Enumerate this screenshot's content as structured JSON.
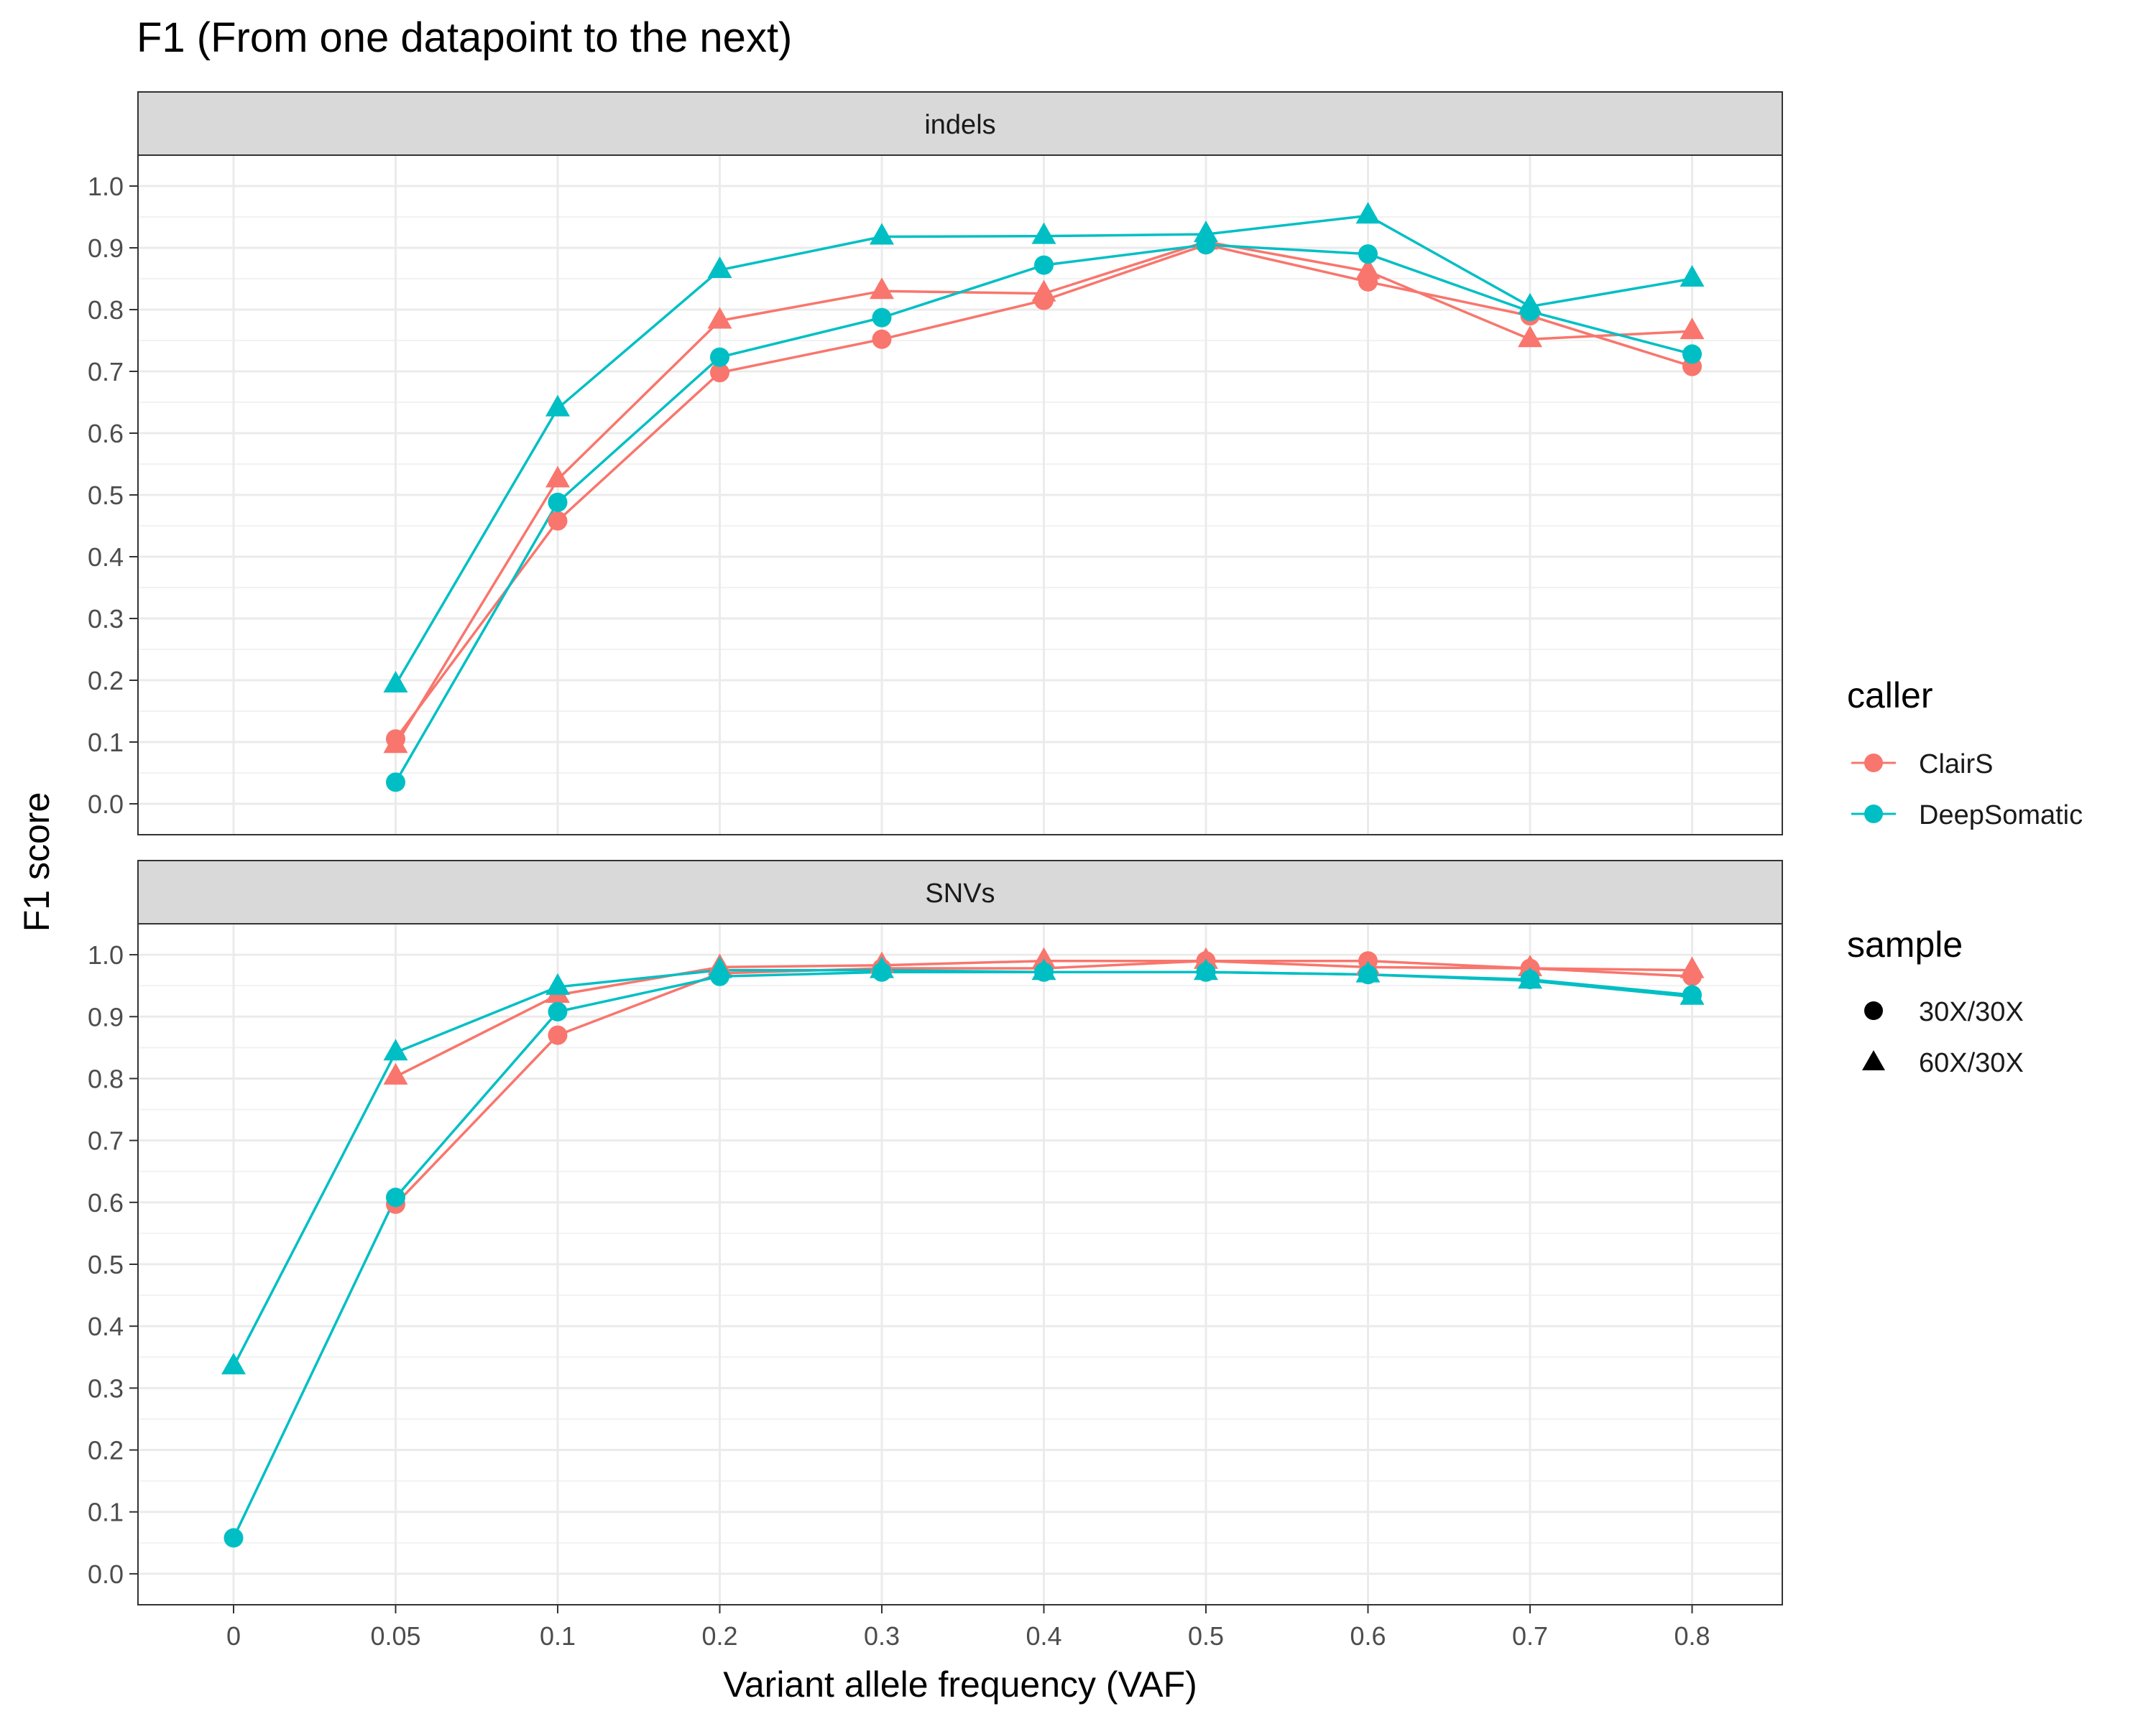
{
  "chart_data": {
    "type": "line",
    "title": "F1 (From one datapoint to the next)",
    "xlabel": "Variant allele frequency (VAF)",
    "ylabel": "F1 score",
    "x_ticks": [
      "0",
      "0.05",
      "0.1",
      "0.2",
      "0.3",
      "0.4",
      "0.5",
      "0.6",
      "0.7",
      "0.8"
    ],
    "y_ticks": [
      "0.0",
      "0.1",
      "0.2",
      "0.3",
      "0.4",
      "0.5",
      "0.6",
      "0.7",
      "0.8",
      "0.9",
      "1.0"
    ],
    "ylim": [
      -0.05,
      1.05
    ],
    "grid": true,
    "colors": {
      "ClairS": "#F8766D",
      "DeepSomatic": "#00BFC4"
    },
    "legend": {
      "caller_title": "caller",
      "caller_items": [
        "ClairS",
        "DeepSomatic"
      ],
      "sample_title": "sample",
      "sample_items": [
        {
          "label": "30X/30X",
          "shape": "circle"
        },
        {
          "label": "60X/30X",
          "shape": "triangle"
        }
      ]
    },
    "panels": [
      {
        "name": "indels",
        "series": [
          {
            "caller": "ClairS",
            "sample": "30X/30X",
            "shape": "circle",
            "x": [
              "0.05",
              "0.1",
              "0.2",
              "0.3",
              "0.4",
              "0.5",
              "0.6",
              "0.7",
              "0.8"
            ],
            "values": [
              0.105,
              0.458,
              0.698,
              0.752,
              0.815,
              0.905,
              0.845,
              0.79,
              0.708
            ]
          },
          {
            "caller": "ClairS",
            "sample": "60X/30X",
            "shape": "triangle",
            "x": [
              "0.05",
              "0.1",
              "0.2",
              "0.3",
              "0.4",
              "0.5",
              "0.6",
              "0.7",
              "0.8"
            ],
            "values": [
              0.095,
              0.525,
              0.782,
              0.83,
              0.826,
              0.91,
              0.862,
              0.752,
              0.765
            ]
          },
          {
            "caller": "DeepSomatic",
            "sample": "30X/30X",
            "shape": "circle",
            "x": [
              "0.05",
              "0.1",
              "0.2",
              "0.3",
              "0.4",
              "0.5",
              "0.6",
              "0.7",
              "0.8"
            ],
            "values": [
              0.035,
              0.488,
              0.723,
              0.787,
              0.872,
              0.905,
              0.89,
              0.797,
              0.728
            ]
          },
          {
            "caller": "DeepSomatic",
            "sample": "60X/30X",
            "shape": "triangle",
            "x": [
              "0.05",
              "0.1",
              "0.2",
              "0.3",
              "0.4",
              "0.5",
              "0.6",
              "0.7",
              "0.8"
            ],
            "values": [
              0.193,
              0.64,
              0.864,
              0.918,
              0.919,
              0.922,
              0.952,
              0.805,
              0.85
            ]
          }
        ]
      },
      {
        "name": "SNVs",
        "series": [
          {
            "caller": "ClairS",
            "sample": "30X/30X",
            "shape": "circle",
            "x": [
              "0.05",
              "0.1",
              "0.2",
              "0.3",
              "0.4",
              "0.5",
              "0.6",
              "0.7",
              "0.8"
            ],
            "values": [
              0.597,
              0.87,
              0.97,
              0.978,
              0.978,
              0.99,
              0.99,
              0.978,
              0.965
            ]
          },
          {
            "caller": "ClairS",
            "sample": "60X/30X",
            "shape": "triangle",
            "x": [
              "0.05",
              "0.1",
              "0.2",
              "0.3",
              "0.4",
              "0.5",
              "0.6",
              "0.7",
              "0.8"
            ],
            "values": [
              0.803,
              0.935,
              0.98,
              0.983,
              0.99,
              0.99,
              0.98,
              0.978,
              0.975
            ]
          },
          {
            "caller": "DeepSomatic",
            "sample": "30X/30X",
            "shape": "circle",
            "x": [
              "0",
              "0.05",
              "0.1",
              "0.2",
              "0.3",
              "0.4",
              "0.5",
              "0.6",
              "0.7",
              "0.8"
            ],
            "values": [
              0.058,
              0.608,
              0.908,
              0.965,
              0.972,
              0.972,
              0.972,
              0.968,
              0.96,
              0.935
            ]
          },
          {
            "caller": "DeepSomatic",
            "sample": "60X/30X",
            "shape": "triangle",
            "x": [
              "0",
              "0.05",
              "0.1",
              "0.2",
              "0.3",
              "0.4",
              "0.5",
              "0.6",
              "0.7",
              "0.8"
            ],
            "values": [
              0.335,
              0.842,
              0.948,
              0.975,
              0.975,
              0.972,
              0.972,
              0.968,
              0.958,
              0.932
            ]
          }
        ]
      }
    ]
  }
}
